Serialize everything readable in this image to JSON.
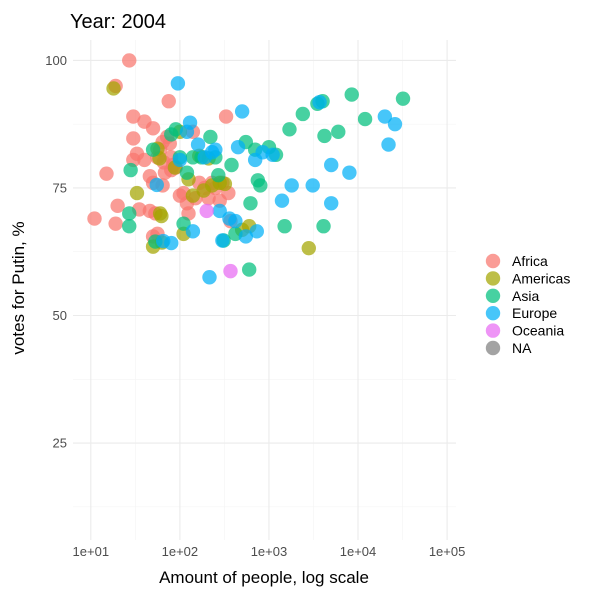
{
  "chart_data": {
    "type": "scatter",
    "title": "Year: 2004",
    "xlabel": "Amount of people, log scale",
    "ylabel": "votes for Putin, %",
    "x_scale": "log10",
    "x_ticks": [
      10,
      100,
      1000,
      10000,
      100000
    ],
    "x_tick_labels": [
      "1e+01",
      "1e+02",
      "1e+03",
      "1e+04",
      "1e+05"
    ],
    "xlim": [
      10,
      100000
    ],
    "y_ticks": [
      25,
      50,
      75,
      100
    ],
    "y_tick_labels": [
      "25",
      "50",
      "75",
      "100"
    ],
    "ylim": [
      6,
      104
    ],
    "grid": true,
    "legend_position": "right",
    "colors": {
      "Africa": "#F8766D",
      "Americas": "#A3A500",
      "Asia": "#00BF7D",
      "Europe": "#00B0F6",
      "Oceania": "#E76BF3",
      "NA": "#7F7F7F"
    },
    "series": [
      {
        "name": "Africa",
        "points": [
          [
            11,
            69
          ],
          [
            15,
            77.8
          ],
          [
            19,
            95
          ],
          [
            20,
            71.5
          ],
          [
            19,
            68
          ],
          [
            27,
            100
          ],
          [
            30,
            89
          ],
          [
            30,
            84.7
          ],
          [
            30,
            80.5
          ],
          [
            33,
            81.7
          ],
          [
            35,
            70.8
          ],
          [
            40,
            88
          ],
          [
            40,
            80.5
          ],
          [
            46,
            77.3
          ],
          [
            46,
            70.5
          ],
          [
            50,
            86.7
          ],
          [
            50,
            76
          ],
          [
            50,
            65.5
          ],
          [
            53,
            70
          ],
          [
            56,
            81
          ],
          [
            56,
            66
          ],
          [
            60,
            82.5
          ],
          [
            64,
            84
          ],
          [
            64,
            75.5
          ],
          [
            66,
            80
          ],
          [
            68,
            78
          ],
          [
            72,
            85
          ],
          [
            75,
            92
          ],
          [
            77,
            83.7
          ],
          [
            80,
            81
          ],
          [
            80,
            78.5
          ],
          [
            84,
            79.5
          ],
          [
            90,
            79
          ],
          [
            100,
            73.5
          ],
          [
            110,
            74
          ],
          [
            120,
            72
          ],
          [
            125,
            70
          ],
          [
            140,
            86
          ],
          [
            150,
            73
          ],
          [
            165,
            76
          ],
          [
            190,
            75
          ],
          [
            210,
            73
          ],
          [
            230,
            76
          ],
          [
            250,
            75
          ],
          [
            280,
            72.5
          ],
          [
            300,
            76
          ],
          [
            330,
            89
          ],
          [
            350,
            74
          ],
          [
            370,
            68.5
          ]
        ]
      },
      {
        "name": "Americas",
        "points": [
          [
            18,
            94.5
          ],
          [
            33,
            74
          ],
          [
            50,
            63.5
          ],
          [
            56,
            82.7
          ],
          [
            59,
            80.8
          ],
          [
            60,
            70
          ],
          [
            62,
            69.5
          ],
          [
            63,
            64.3
          ],
          [
            88,
            79
          ],
          [
            100,
            86
          ],
          [
            110,
            66
          ],
          [
            125,
            76.7
          ],
          [
            140,
            73.5
          ],
          [
            165,
            81.3
          ],
          [
            185,
            74.5
          ],
          [
            210,
            80.8
          ],
          [
            230,
            75.5
          ],
          [
            280,
            76
          ],
          [
            320,
            75.8
          ],
          [
            500,
            66.8
          ],
          [
            600,
            67.5
          ],
          [
            2800,
            63.2
          ]
        ]
      },
      {
        "name": "Asia",
        "points": [
          [
            27,
            70
          ],
          [
            27,
            67.5
          ],
          [
            28,
            78.5
          ],
          [
            50,
            82.5
          ],
          [
            53,
            64.5
          ],
          [
            80,
            85.5
          ],
          [
            90,
            86.5
          ],
          [
            100,
            81
          ],
          [
            110,
            68
          ],
          [
            120,
            78
          ],
          [
            140,
            81
          ],
          [
            175,
            81
          ],
          [
            220,
            85
          ],
          [
            250,
            81
          ],
          [
            270,
            77.5
          ],
          [
            310,
            64.7
          ],
          [
            380,
            79.5
          ],
          [
            420,
            66
          ],
          [
            550,
            84
          ],
          [
            600,
            59
          ],
          [
            620,
            72
          ],
          [
            700,
            82.5
          ],
          [
            750,
            76.5
          ],
          [
            800,
            75.5
          ],
          [
            1000,
            83
          ],
          [
            1200,
            81.5
          ],
          [
            1500,
            67.5
          ],
          [
            1700,
            86.5
          ],
          [
            2400,
            89.5
          ],
          [
            3500,
            91.5
          ],
          [
            4000,
            92
          ],
          [
            4100,
            67.5
          ],
          [
            4200,
            85.2
          ],
          [
            6000,
            86
          ],
          [
            8500,
            93.3
          ],
          [
            12000,
            88.5
          ],
          [
            32000,
            92.5
          ]
        ]
      },
      {
        "name": "Europe",
        "points": [
          [
            55,
            75.6
          ],
          [
            65,
            64.6
          ],
          [
            80,
            64.2
          ],
          [
            95,
            95.5
          ],
          [
            100,
            80.5
          ],
          [
            120,
            86
          ],
          [
            130,
            87.8
          ],
          [
            140,
            66.5
          ],
          [
            160,
            83.5
          ],
          [
            190,
            81
          ],
          [
            215,
            57.5
          ],
          [
            230,
            82
          ],
          [
            250,
            82.5
          ],
          [
            280,
            70.5
          ],
          [
            300,
            64.7
          ],
          [
            360,
            69
          ],
          [
            420,
            68.5
          ],
          [
            450,
            83
          ],
          [
            500,
            90
          ],
          [
            550,
            65.5
          ],
          [
            700,
            80.5
          ],
          [
            730,
            66.5
          ],
          [
            850,
            82
          ],
          [
            1100,
            81.5
          ],
          [
            1400,
            72.5
          ],
          [
            1800,
            75.5
          ],
          [
            3100,
            75.5
          ],
          [
            3700,
            91.8
          ],
          [
            5000,
            72
          ],
          [
            5000,
            79.5
          ],
          [
            8000,
            78
          ],
          [
            20000,
            89
          ],
          [
            22000,
            83.5
          ],
          [
            26000,
            87.5
          ]
        ]
      },
      {
        "name": "Oceania",
        "points": [
          [
            200,
            70.5
          ],
          [
            370,
            58.7
          ]
        ]
      },
      {
        "name": "NA",
        "points": []
      }
    ]
  }
}
